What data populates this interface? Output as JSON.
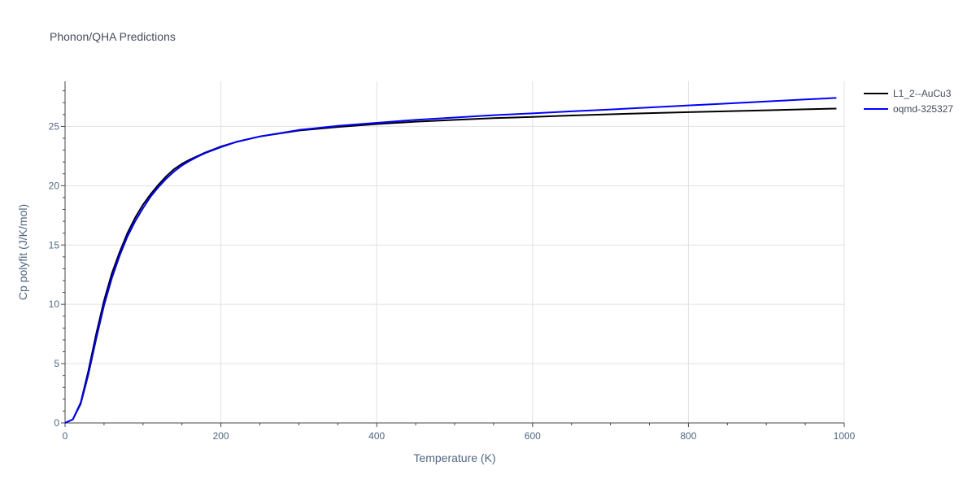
{
  "chart_data": {
    "type": "line",
    "title": "Phonon/QHA Predictions",
    "xlabel": "Temperature (K)",
    "ylabel": "Cp polyfit (J/K/mol)",
    "xlim": [
      0,
      1000
    ],
    "ylim": [
      0,
      28.8
    ],
    "xticks": [
      0,
      200,
      400,
      600,
      800,
      1000
    ],
    "yticks": [
      0,
      5,
      10,
      15,
      20,
      25
    ],
    "grid": true,
    "legend_position": "top-right",
    "series": [
      {
        "name": "L1_2--AuCu3",
        "color": "#000000",
        "x": [
          0,
          10,
          20,
          30,
          40,
          50,
          60,
          70,
          80,
          90,
          100,
          110,
          120,
          130,
          140,
          150,
          160,
          170,
          180,
          190,
          200,
          220,
          250,
          300,
          350,
          400,
          450,
          500,
          550,
          600,
          650,
          700,
          750,
          800,
          850,
          900,
          950,
          990
        ],
        "y": [
          0,
          0.3,
          1.7,
          4.4,
          7.5,
          10.3,
          12.6,
          14.4,
          16.0,
          17.3,
          18.4,
          19.3,
          20.1,
          20.8,
          21.4,
          21.85,
          22.2,
          22.5,
          22.8,
          23.05,
          23.3,
          23.7,
          24.15,
          24.65,
          24.95,
          25.2,
          25.4,
          25.55,
          25.7,
          25.8,
          25.92,
          26.02,
          26.12,
          26.2,
          26.28,
          26.36,
          26.44,
          26.5
        ]
      },
      {
        "name": "oqmd-325327",
        "color": "#0000ff",
        "x": [
          0,
          10,
          20,
          30,
          40,
          50,
          60,
          70,
          80,
          90,
          100,
          110,
          120,
          130,
          140,
          150,
          160,
          170,
          180,
          190,
          200,
          220,
          250,
          300,
          350,
          400,
          450,
          500,
          550,
          600,
          650,
          700,
          750,
          800,
          850,
          900,
          950,
          990
        ],
        "y": [
          0,
          0.3,
          1.6,
          4.1,
          7.1,
          9.9,
          12.2,
          14.1,
          15.7,
          17.0,
          18.1,
          19.1,
          19.9,
          20.6,
          21.2,
          21.7,
          22.1,
          22.45,
          22.75,
          23.0,
          23.25,
          23.7,
          24.15,
          24.7,
          25.05,
          25.3,
          25.55,
          25.75,
          25.95,
          26.1,
          26.27,
          26.43,
          26.6,
          26.77,
          26.93,
          27.1,
          27.27,
          27.4
        ]
      }
    ]
  }
}
